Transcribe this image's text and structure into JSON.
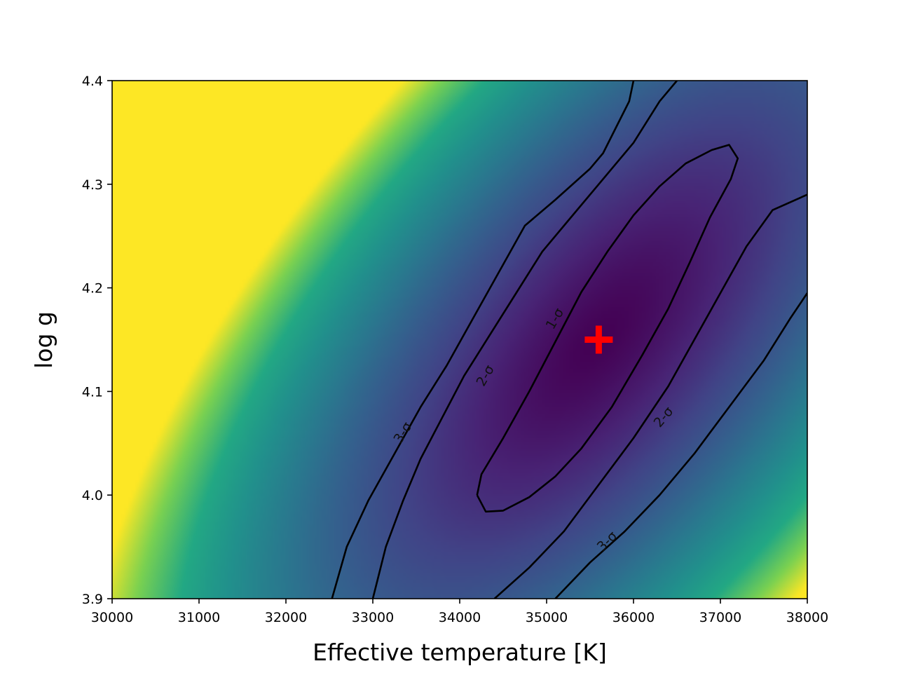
{
  "chart_data": {
    "type": "heatmap",
    "title": "",
    "xlabel": "Effective temperature [K]",
    "ylabel": "log g",
    "xlim": [
      30000,
      38000
    ],
    "ylim": [
      3.9,
      4.4
    ],
    "xticks": [
      30000,
      31000,
      32000,
      33000,
      34000,
      35000,
      36000,
      37000,
      38000
    ],
    "xtick_labels": [
      "30000",
      "31000",
      "32000",
      "33000",
      "34000",
      "35000",
      "36000",
      "37000",
      "38000"
    ],
    "yticks": [
      3.9,
      4.0,
      4.1,
      4.2,
      4.3,
      4.4
    ],
    "ytick_labels": [
      "3.9",
      "4.0",
      "4.1",
      "4.2",
      "4.3",
      "4.4"
    ],
    "colormap": "viridis",
    "grid": false,
    "best_fit": {
      "teff": 35600,
      "logg": 4.15,
      "color": "#ff0000",
      "marker": "plus"
    },
    "contours": [
      {
        "name": "1-σ",
        "label": "1-σ",
        "paths": [
          [
            [
              34200,
              4.0
            ],
            [
              34300,
              3.984
            ],
            [
              34500,
              3.985
            ],
            [
              34800,
              3.998
            ],
            [
              35100,
              4.018
            ],
            [
              35400,
              4.045
            ],
            [
              35750,
              4.085
            ],
            [
              36100,
              4.135
            ],
            [
              36400,
              4.18
            ],
            [
              36650,
              4.225
            ],
            [
              36880,
              4.268
            ],
            [
              37120,
              4.305
            ],
            [
              37200,
              4.325
            ],
            [
              37100,
              4.338
            ],
            [
              36900,
              4.333
            ],
            [
              36600,
              4.32
            ],
            [
              36300,
              4.298
            ],
            [
              36000,
              4.27
            ],
            [
              35700,
              4.235
            ],
            [
              35400,
              4.196
            ],
            [
              35100,
              4.148
            ],
            [
              34800,
              4.1
            ],
            [
              34500,
              4.055
            ],
            [
              34250,
              4.02
            ],
            [
              34200,
              4.0
            ]
          ]
        ],
        "labels": [
          {
            "text": "1-σ",
            "x": 35100,
            "y": 4.17,
            "angle": -60
          }
        ]
      },
      {
        "name": "2-σ",
        "label": "2-σ",
        "paths": [
          [
            [
              33000,
              3.9
            ],
            [
              33150,
              3.95
            ],
            [
              33350,
              3.995
            ],
            [
              33550,
              4.035
            ],
            [
              33800,
              4.075
            ],
            [
              34050,
              4.115
            ],
            [
              34350,
              4.155
            ],
            [
              34650,
              4.195
            ],
            [
              34950,
              4.235
            ],
            [
              35250,
              4.265
            ],
            [
              35600,
              4.3
            ],
            [
              36000,
              4.34
            ],
            [
              36300,
              4.38
            ],
            [
              36500,
              4.4
            ]
          ],
          [
            [
              34400,
              3.9
            ],
            [
              34800,
              3.93
            ],
            [
              35200,
              3.965
            ],
            [
              35600,
              4.01
            ],
            [
              36000,
              4.055
            ],
            [
              36400,
              4.105
            ],
            [
              36700,
              4.15
            ],
            [
              37000,
              4.195
            ],
            [
              37300,
              4.24
            ],
            [
              37600,
              4.275
            ],
            [
              38000,
              4.29
            ]
          ]
        ],
        "labels": [
          {
            "text": "2-σ",
            "x": 34300,
            "y": 4.115,
            "angle": -60
          },
          {
            "text": "2-σ",
            "x": 36350,
            "y": 4.075,
            "angle": -50
          }
        ]
      },
      {
        "name": "3-σ",
        "label": "3-σ",
        "paths": [
          [
            [
              32530,
              3.9
            ],
            [
              32700,
              3.95
            ],
            [
              32950,
              3.995
            ],
            [
              33250,
              4.04
            ],
            [
              33550,
              4.085
            ],
            [
              33850,
              4.125
            ],
            [
              34150,
              4.17
            ],
            [
              34450,
              4.215
            ],
            [
              34750,
              4.26
            ],
            [
              35100,
              4.285
            ],
            [
              35500,
              4.315
            ],
            [
              35650,
              4.33
            ],
            [
              35800,
              4.355
            ],
            [
              35950,
              4.38
            ],
            [
              36000,
              4.4
            ]
          ],
          [
            [
              35100,
              3.9
            ],
            [
              35500,
              3.935
            ],
            [
              35900,
              3.965
            ],
            [
              36300,
              4.0
            ],
            [
              36700,
              4.04
            ],
            [
              37100,
              4.085
            ],
            [
              37500,
              4.13
            ],
            [
              37800,
              4.17
            ],
            [
              38000,
              4.195
            ]
          ]
        ],
        "labels": [
          {
            "text": "3-σ",
            "x": 33350,
            "y": 4.06,
            "angle": -58
          },
          {
            "text": "3-σ",
            "x": 35700,
            "y": 3.955,
            "angle": -45
          }
        ]
      }
    ]
  }
}
